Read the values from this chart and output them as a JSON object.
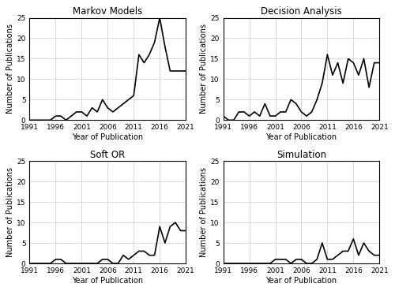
{
  "years": [
    1991,
    1992,
    1993,
    1994,
    1995,
    1996,
    1997,
    1998,
    1999,
    2000,
    2001,
    2002,
    2003,
    2004,
    2005,
    2006,
    2007,
    2008,
    2009,
    2010,
    2011,
    2012,
    2013,
    2014,
    2015,
    2016,
    2017,
    2018,
    2019,
    2020,
    2021
  ],
  "markov": [
    0,
    0,
    0,
    0,
    0,
    1,
    1,
    0,
    1,
    2,
    2,
    1,
    3,
    2,
    5,
    3,
    2,
    3,
    4,
    5,
    6,
    16,
    14,
    16,
    19,
    25,
    18,
    12,
    12,
    12,
    12
  ],
  "decision": [
    1,
    0,
    0,
    2,
    2,
    1,
    2,
    1,
    4,
    1,
    1,
    2,
    2,
    5,
    4,
    2,
    1,
    2,
    5,
    9,
    16,
    11,
    14,
    9,
    15,
    14,
    11,
    15,
    8,
    14,
    14
  ],
  "soft_or": [
    0,
    0,
    0,
    0,
    0,
    1,
    1,
    0,
    0,
    0,
    0,
    0,
    0,
    0,
    1,
    1,
    0,
    0,
    2,
    1,
    2,
    3,
    3,
    2,
    2,
    9,
    5,
    9,
    10,
    8,
    8
  ],
  "simulation": [
    0,
    0,
    0,
    0,
    0,
    0,
    0,
    0,
    0,
    0,
    1,
    1,
    1,
    0,
    1,
    1,
    0,
    0,
    1,
    5,
    1,
    1,
    2,
    3,
    3,
    6,
    2,
    5,
    3,
    2,
    2
  ],
  "titles": [
    "Markov Models",
    "Decision Analysis",
    "Soft OR",
    "Simulation"
  ],
  "ylabel": "Number of Publications",
  "xlabel": "Year of Publication",
  "ylim": [
    0,
    25
  ],
  "yticks": [
    0,
    5,
    10,
    15,
    20,
    25
  ],
  "xticks": [
    1991,
    1996,
    2001,
    2006,
    2011,
    2016,
    2021
  ],
  "line_color": "#000000",
  "line_width": 1.2,
  "grid_color": "#cccccc",
  "title_fontsize": 8.5,
  "label_fontsize": 7,
  "tick_fontsize": 6.5,
  "fig_width": 5.0,
  "fig_height": 3.69,
  "dpi": 100
}
